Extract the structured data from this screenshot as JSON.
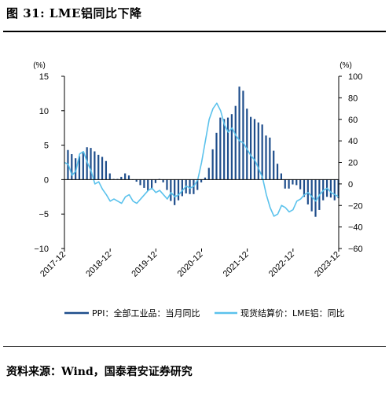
{
  "title": "图 31: LME铝同比下降",
  "source": "资料来源：Wind，国泰君安证券研究",
  "chart_data": {
    "type": "bar",
    "left_axis": {
      "unit": "(%)",
      "ylim": [
        -10,
        15
      ],
      "ticks": [
        "15",
        "10",
        "5",
        "0",
        "−5",
        "−10"
      ]
    },
    "right_axis": {
      "unit": "(%)",
      "ylim": [
        -60,
        100
      ],
      "ticks": [
        "100",
        "80",
        "60",
        "40",
        "20",
        "0",
        "−20",
        "−40",
        "−60"
      ]
    },
    "x_ticks": [
      "2017-12",
      "2018-12",
      "2019-12",
      "2020-12",
      "2021-12",
      "2022-12",
      "2023-12"
    ],
    "grid": false,
    "legend_position": "bottom",
    "series": [
      {
        "name": "PPI：全部工业品：当月同比",
        "type": "bar",
        "axis": "left",
        "color": "#1f4e8c",
        "start": "2018-01",
        "values": [
          4.3,
          3.7,
          3.1,
          3.4,
          4.1,
          4.7,
          4.6,
          4.1,
          3.6,
          3.3,
          2.7,
          0.9,
          0.1,
          0.1,
          0.4,
          0.9,
          0.6,
          0.0,
          -0.3,
          -0.8,
          -1.2,
          -1.6,
          -1.4,
          -0.5,
          0.1,
          -0.4,
          -1.5,
          -3.1,
          -3.7,
          -3.0,
          -2.4,
          -2.0,
          -2.1,
          -2.1,
          -1.5,
          -0.4,
          0.3,
          1.7,
          4.4,
          6.8,
          9.0,
          8.8,
          9.0,
          9.5,
          10.7,
          13.5,
          12.9,
          10.3,
          9.1,
          8.8,
          8.3,
          8.0,
          6.4,
          6.1,
          4.2,
          2.3,
          0.9,
          -1.3,
          -1.3,
          -0.7,
          -0.8,
          -1.4,
          -2.5,
          -3.6,
          -4.6,
          -5.4,
          -4.4,
          -3.0,
          -2.5,
          -2.6,
          -3.0,
          -2.7
        ]
      },
      {
        "name": "现货结算价：LME铝：同比",
        "type": "line",
        "axis": "right",
        "color": "#5bc2ec",
        "start": "2017-12",
        "values": [
          20,
          18,
          8,
          12,
          28,
          30,
          20,
          12,
          0,
          2,
          -5,
          -10,
          -16,
          -14,
          -16,
          -18,
          -12,
          -10,
          -16,
          -18,
          -14,
          -10,
          -6,
          -4,
          -8,
          -6,
          -10,
          -14,
          -8,
          -12,
          -10,
          -6,
          -2,
          -4,
          -2,
          4,
          20,
          40,
          60,
          70,
          75,
          68,
          55,
          48,
          52,
          45,
          40,
          38,
          32,
          26,
          22,
          14,
          6,
          -10,
          -22,
          -30,
          -28,
          -20,
          -22,
          -26,
          -24,
          -16,
          -14,
          -10,
          -8,
          -12,
          -16,
          -10,
          -6,
          -4,
          -8,
          -10,
          -12
        ]
      }
    ]
  },
  "legend": [
    {
      "label": "PPI：全部工业品：当月同比",
      "color": "#1f4e8c"
    },
    {
      "label": "现货结算价：LME铝：同比",
      "color": "#5bc2ec"
    }
  ]
}
